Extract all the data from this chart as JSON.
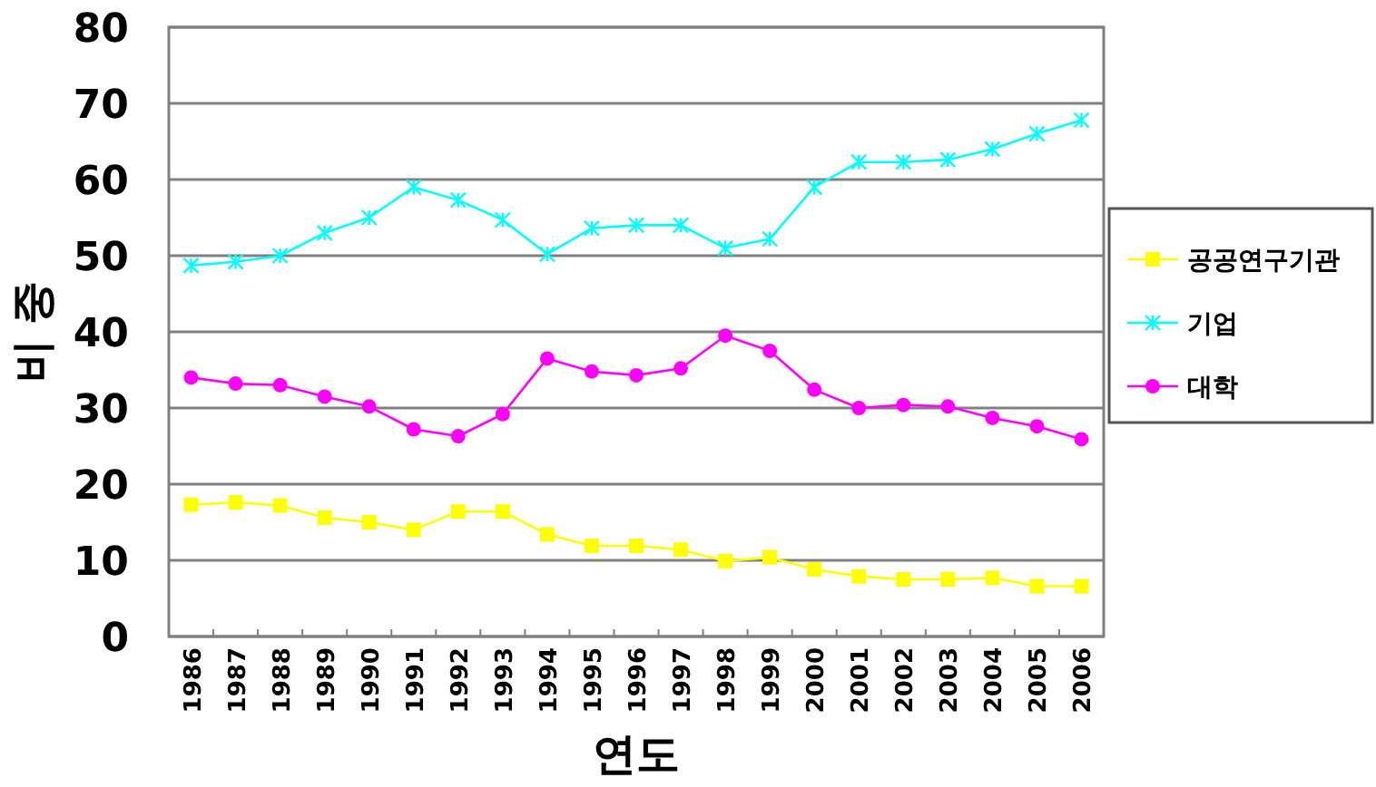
{
  "chart_data": {
    "type": "line",
    "xlabel": "연도",
    "ylabel": "비 중",
    "categories": [
      "1986",
      "1987",
      "1988",
      "1989",
      "1990",
      "1991",
      "1992",
      "1993",
      "1994",
      "1995",
      "1996",
      "1997",
      "1998",
      "1999",
      "2000",
      "2001",
      "2002",
      "2003",
      "2004",
      "2005",
      "2006"
    ],
    "series": [
      {
        "name": "공공연구기관",
        "color": "#ffff00",
        "marker": "square",
        "values": [
          17.3,
          17.6,
          17.2,
          15.6,
          15,
          14,
          16.4,
          16.4,
          13.4,
          11.9,
          11.9,
          11.4,
          9.9,
          10.4,
          8.8,
          7.9,
          7.5,
          7.5,
          7.7,
          6.6,
          6.6
        ]
      },
      {
        "name": "기업",
        "color": "#00ffff",
        "marker": "cross",
        "values": [
          48.7,
          49.2,
          50,
          53,
          55,
          59,
          57.3,
          54.7,
          50.2,
          53.6,
          54,
          54,
          51,
          52.2,
          59,
          62.3,
          62.3,
          62.6,
          64,
          66,
          67.8
        ]
      },
      {
        "name": "대학",
        "color": "#ff00ff",
        "marker": "circle",
        "values": [
          34,
          33.2,
          33,
          31.5,
          30.2,
          27.2,
          26.3,
          29.2,
          36.5,
          34.8,
          34.3,
          35.2,
          39.5,
          37.5,
          32.4,
          30,
          30.4,
          30.2,
          28.7,
          27.6,
          25.9
        ]
      }
    ],
    "ylim": [
      0,
      80
    ],
    "yticks": [
      0,
      10,
      20,
      30,
      40,
      50,
      60,
      70,
      80
    ],
    "grid": "y",
    "legend": "right"
  }
}
